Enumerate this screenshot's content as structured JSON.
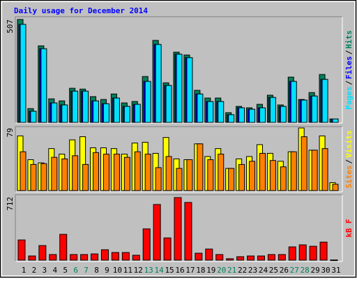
{
  "title": "Daily usage for December 2014",
  "chart_data": [
    {
      "type": "bar",
      "ylim": [
        0,
        507
      ],
      "yticks": [
        507
      ],
      "legend_separator": "/",
      "series": [
        {
          "name": "Hits",
          "color": "#00805c",
          "values": [
            507,
            68,
            377,
            116,
            106,
            168,
            164,
            127,
            113,
            140,
            96,
            103,
            226,
            404,
            195,
            346,
            332,
            158,
            120,
            120,
            48,
            79,
            72,
            89,
            134,
            86,
            223,
            113,
            147,
            236,
            17
          ]
        },
        {
          "name": "Files",
          "color": "#0000ff",
          "values": [
            483,
            55,
            363,
            96,
            86,
            154,
            154,
            106,
            92,
            120,
            79,
            89,
            202,
            384,
            182,
            336,
            319,
            140,
            103,
            103,
            38,
            72,
            65,
            72,
            123,
            79,
            202,
            110,
            130,
            212,
            17
          ]
        },
        {
          "name": "Pages",
          "color": "#00e0ff",
          "values": [
            483,
            55,
            363,
            96,
            86,
            154,
            154,
            106,
            92,
            120,
            79,
            89,
            202,
            384,
            182,
            336,
            319,
            140,
            103,
            103,
            38,
            72,
            65,
            72,
            123,
            79,
            202,
            110,
            130,
            212,
            17
          ]
        }
      ]
    },
    {
      "type": "bar",
      "ylim": [
        0,
        79
      ],
      "yticks": [
        79
      ],
      "legend_separator": "/",
      "series": [
        {
          "name": "Visits",
          "color": "#ffff00",
          "values": [
            69,
            39,
            35,
            53,
            46,
            64,
            68,
            54,
            54,
            53,
            46,
            60,
            61,
            47,
            67,
            40,
            39,
            59,
            43,
            53,
            28,
            40,
            43,
            58,
            47,
            37,
            49,
            79,
            51,
            69,
            10
          ]
        },
        {
          "name": "Sites",
          "color": "#ff8000",
          "values": [
            49,
            33,
            34,
            42,
            40,
            44,
            33,
            48,
            46,
            46,
            42,
            49,
            46,
            29,
            43,
            28,
            39,
            59,
            39,
            46,
            28,
            33,
            37,
            47,
            38,
            30,
            49,
            68,
            51,
            53,
            8
          ]
        }
      ]
    },
    {
      "type": "bar",
      "ylim": [
        0,
        712
      ],
      "yticks": [
        712
      ],
      "categories": [
        "1",
        "2",
        "3",
        "4",
        "5",
        "6",
        "7",
        "8",
        "9",
        "10",
        "11",
        "12",
        "13",
        "14",
        "15",
        "16",
        "17",
        "18",
        "19",
        "20",
        "21",
        "22",
        "23",
        "24",
        "25",
        "26",
        "27",
        "28",
        "29",
        "30",
        "31"
      ],
      "weekend": [
        5,
        6,
        12,
        13,
        19,
        20,
        26,
        27
      ],
      "weekend_color": "#00805c",
      "series": [
        {
          "name": "kB F",
          "color": "#ff0000",
          "values": [
            227,
            47,
            164,
            63,
            290,
            63,
            63,
            70,
            117,
            86,
            86,
            55,
            352,
            626,
            250,
            704,
            649,
            78,
            125,
            63,
            16,
            39,
            47,
            47,
            63,
            63,
            149,
            172,
            156,
            203,
            2
          ]
        }
      ]
    }
  ]
}
